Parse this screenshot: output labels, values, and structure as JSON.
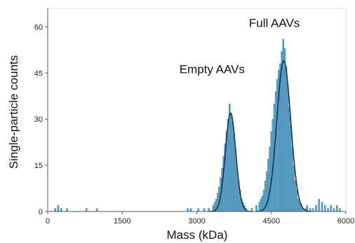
{
  "chart_data": {
    "type": "bar",
    "title": "",
    "xlabel": "Mass (kDa)",
    "ylabel": "Single-particle counts",
    "xlim": [
      0,
      6000
    ],
    "ylim": [
      0,
      66
    ],
    "xticks": [
      0,
      1500,
      3000,
      4500,
      6000
    ],
    "yticks": [
      0,
      15,
      30,
      45,
      60
    ],
    "grid": false,
    "colors": {
      "bar": "#5ea4c9",
      "bar_edge": "#3f7fa6",
      "fit": "#1a3550",
      "axis": "#555555"
    },
    "bin_width": 30,
    "histogram": [
      {
        "x": 150,
        "y": 1
      },
      {
        "x": 210,
        "y": 2
      },
      {
        "x": 270,
        "y": 1
      },
      {
        "x": 390,
        "y": 1
      },
      {
        "x": 780,
        "y": 1
      },
      {
        "x": 990,
        "y": 1
      },
      {
        "x": 2820,
        "y": 1
      },
      {
        "x": 2880,
        "y": 1
      },
      {
        "x": 3030,
        "y": 1
      },
      {
        "x": 3150,
        "y": 1
      },
      {
        "x": 3240,
        "y": 1
      },
      {
        "x": 3330,
        "y": 2
      },
      {
        "x": 3360,
        "y": 3
      },
      {
        "x": 3390,
        "y": 4
      },
      {
        "x": 3420,
        "y": 6
      },
      {
        "x": 3450,
        "y": 8
      },
      {
        "x": 3480,
        "y": 11
      },
      {
        "x": 3510,
        "y": 14
      },
      {
        "x": 3540,
        "y": 18
      },
      {
        "x": 3570,
        "y": 22
      },
      {
        "x": 3600,
        "y": 26
      },
      {
        "x": 3630,
        "y": 30
      },
      {
        "x": 3660,
        "y": 35
      },
      {
        "x": 3690,
        "y": 32
      },
      {
        "x": 3720,
        "y": 29
      },
      {
        "x": 3750,
        "y": 25
      },
      {
        "x": 3780,
        "y": 20
      },
      {
        "x": 3810,
        "y": 14
      },
      {
        "x": 3840,
        "y": 10
      },
      {
        "x": 3870,
        "y": 7
      },
      {
        "x": 3900,
        "y": 4
      },
      {
        "x": 3930,
        "y": 3
      },
      {
        "x": 3960,
        "y": 2
      },
      {
        "x": 3990,
        "y": 1
      },
      {
        "x": 4110,
        "y": 1
      },
      {
        "x": 4200,
        "y": 2
      },
      {
        "x": 4260,
        "y": 3
      },
      {
        "x": 4290,
        "y": 4
      },
      {
        "x": 4320,
        "y": 5
      },
      {
        "x": 4350,
        "y": 7
      },
      {
        "x": 4380,
        "y": 10
      },
      {
        "x": 4410,
        "y": 13
      },
      {
        "x": 4440,
        "y": 17
      },
      {
        "x": 4470,
        "y": 21
      },
      {
        "x": 4500,
        "y": 26
      },
      {
        "x": 4530,
        "y": 30
      },
      {
        "x": 4560,
        "y": 35
      },
      {
        "x": 4590,
        "y": 39
      },
      {
        "x": 4620,
        "y": 43
      },
      {
        "x": 4650,
        "y": 46
      },
      {
        "x": 4680,
        "y": 48
      },
      {
        "x": 4710,
        "y": 52
      },
      {
        "x": 4740,
        "y": 56
      },
      {
        "x": 4770,
        "y": 53
      },
      {
        "x": 4800,
        "y": 47
      },
      {
        "x": 4830,
        "y": 41
      },
      {
        "x": 4860,
        "y": 34
      },
      {
        "x": 4890,
        "y": 28
      },
      {
        "x": 4920,
        "y": 21
      },
      {
        "x": 4950,
        "y": 15
      },
      {
        "x": 4980,
        "y": 10
      },
      {
        "x": 5010,
        "y": 7
      },
      {
        "x": 5040,
        "y": 4
      },
      {
        "x": 5070,
        "y": 3
      },
      {
        "x": 5100,
        "y": 2
      },
      {
        "x": 5130,
        "y": 1
      },
      {
        "x": 5190,
        "y": 1
      },
      {
        "x": 5220,
        "y": 2
      },
      {
        "x": 5280,
        "y": 1
      },
      {
        "x": 5340,
        "y": 1
      },
      {
        "x": 5400,
        "y": 2
      },
      {
        "x": 5460,
        "y": 4
      },
      {
        "x": 5520,
        "y": 3
      },
      {
        "x": 5580,
        "y": 2
      },
      {
        "x": 5640,
        "y": 1
      },
      {
        "x": 5700,
        "y": 2
      },
      {
        "x": 5760,
        "y": 1
      },
      {
        "x": 5820,
        "y": 2
      },
      {
        "x": 5880,
        "y": 1
      }
    ],
    "gaussian_fits": [
      {
        "center": 3680,
        "sigma": 105,
        "amplitude": 32
      },
      {
        "center": 4750,
        "sigma": 140,
        "amplitude": 49
      }
    ],
    "annotations": [
      {
        "text": "Empty AAVs",
        "x": 2650,
        "y": 45
      },
      {
        "text": "Full AAVs",
        "x": 4050,
        "y": 60
      }
    ]
  }
}
